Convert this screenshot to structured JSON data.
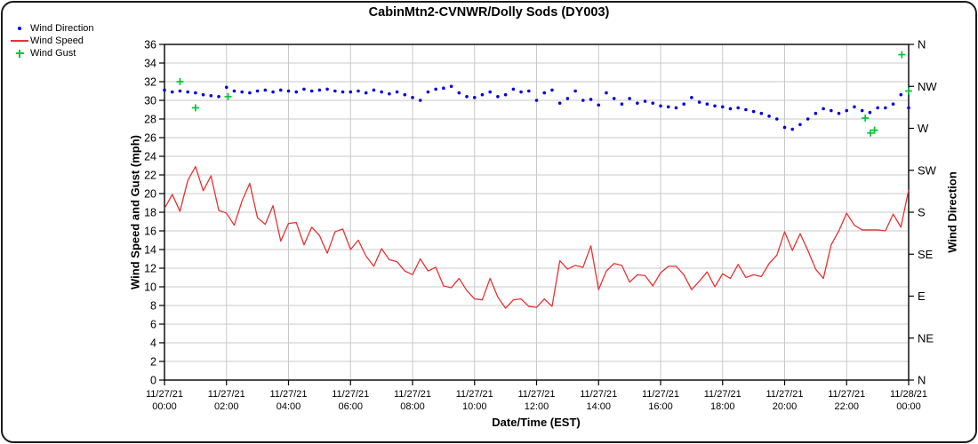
{
  "title": "CabinMtn2-CVNWR/Dolly Sods (DY003)",
  "legend": {
    "items": [
      {
        "label": "Wind Direction",
        "marker": "dot",
        "color": "#0000e0"
      },
      {
        "label": "Wind Speed",
        "marker": "line",
        "color": "#e63232"
      },
      {
        "label": "Wind Gust",
        "marker": "plus",
        "color": "#00c832"
      }
    ]
  },
  "colors": {
    "wind_direction": "#0000e0",
    "wind_speed": "#e63232",
    "wind_gust": "#00c832",
    "grid": "#c9c9c9",
    "axis": "#000000"
  },
  "chart_data": {
    "type": "line",
    "title": "CabinMtn2-CVNWR/Dolly Sods (DY003)",
    "xlabel": "Date/Time (EST)",
    "ylabel_left": "Wind Speed and Gust (mph)",
    "ylabel_right": "Wind Direction",
    "grid": true,
    "legend_position": "top-left",
    "x_unit": "hours since 11/27/21 00:00 EST",
    "xlim": [
      0,
      24
    ],
    "ylim_left": [
      0,
      36
    ],
    "y_tick_step_left": 2,
    "x_tick_step_hours": 2,
    "x_tick_labels": [
      [
        "11/27/21",
        "00:00"
      ],
      [
        "11/27/21",
        "02:00"
      ],
      [
        "11/27/21",
        "04:00"
      ],
      [
        "11/27/21",
        "06:00"
      ],
      [
        "11/27/21",
        "08:00"
      ],
      [
        "11/27/21",
        "10:00"
      ],
      [
        "11/27/21",
        "12:00"
      ],
      [
        "11/27/21",
        "14:00"
      ],
      [
        "11/27/21",
        "16:00"
      ],
      [
        "11/27/21",
        "18:00"
      ],
      [
        "11/27/21",
        "20:00"
      ],
      [
        "11/27/21",
        "22:00"
      ],
      [
        "11/28/21",
        "00:00"
      ]
    ],
    "right_axis_labels": [
      "N",
      "NW",
      "W",
      "SW",
      "S",
      "SE",
      "E",
      "NE",
      "N"
    ],
    "right_axis_values_deg": [
      360,
      315,
      270,
      225,
      180,
      135,
      90,
      45,
      0
    ],
    "right_axis_mapping": "degrees/10 plotted on left 0-36 scale",
    "sample_interval_min": 15,
    "series": [
      {
        "name": "Wind Speed",
        "type": "line",
        "axis": "left",
        "color": "#e63232",
        "x_start": 0,
        "x_step": 0.25,
        "mph": [
          18.4,
          19.9,
          18.1,
          21.4,
          22.9,
          20.3,
          21.9,
          18.2,
          17.9,
          16.6,
          19.2,
          21.1,
          17.4,
          16.7,
          18.7,
          14.9,
          16.8,
          16.9,
          14.5,
          16.4,
          15.5,
          13.6,
          15.9,
          16.2,
          14.0,
          15.0,
          13.3,
          12.2,
          14.1,
          12.9,
          12.7,
          11.7,
          11.3,
          13.0,
          11.7,
          12.1,
          10.1,
          9.9,
          10.9,
          9.6,
          8.7,
          8.6,
          10.9,
          8.9,
          7.7,
          8.6,
          8.7,
          7.9,
          7.8,
          8.7,
          7.9,
          12.8,
          11.9,
          12.3,
          12.1,
          14.4,
          9.7,
          11.7,
          12.5,
          12.3,
          10.5,
          11.3,
          11.2,
          10.1,
          11.5,
          12.2,
          12.2,
          11.3,
          9.7,
          10.6,
          11.6,
          10.0,
          11.4,
          10.9,
          12.4,
          11.0,
          11.3,
          11.1,
          12.5,
          13.4,
          15.9,
          13.9,
          15.7,
          13.9,
          11.9,
          10.9,
          14.5,
          16.0,
          17.9,
          16.6,
          16.1,
          16.1,
          16.1,
          16.0,
          17.8,
          16.4,
          20.4
        ]
      },
      {
        "name": "Wind Direction",
        "type": "scatter",
        "marker": "dot",
        "axis": "right",
        "color": "#0000e0",
        "x_start": 0,
        "x_step": 0.25,
        "deg": [
          311,
          309,
          310,
          309,
          308,
          306,
          305,
          304,
          314,
          310,
          309,
          308,
          310,
          311,
          309,
          311,
          310,
          309,
          312,
          310,
          311,
          312,
          310,
          309,
          309,
          310,
          308,
          311,
          309,
          307,
          309,
          306,
          303,
          300,
          309,
          312,
          313,
          315,
          308,
          304,
          303,
          306,
          309,
          304,
          306,
          312,
          309,
          310,
          300,
          308,
          311,
          297,
          302,
          310,
          300,
          301,
          295,
          308,
          302,
          296,
          302,
          297,
          299,
          297,
          294,
          293,
          292,
          296,
          303,
          298,
          296,
          294,
          293,
          291,
          292,
          290,
          288,
          286,
          283,
          280,
          271,
          269,
          274,
          280,
          286,
          291,
          289,
          286,
          289,
          293,
          289,
          287,
          292,
          292,
          296,
          306,
          292
        ]
      },
      {
        "name": "Wind Gust",
        "type": "scatter",
        "marker": "plus",
        "axis": "left",
        "color": "#00c832",
        "points_mph": [
          [
            0.5,
            32.0
          ],
          [
            1.0,
            29.2
          ],
          [
            2.05,
            30.4
          ],
          [
            22.6,
            28.1
          ],
          [
            22.77,
            26.5
          ],
          [
            22.9,
            26.8
          ],
          [
            23.78,
            34.9
          ],
          [
            24.0,
            31.0
          ]
        ]
      }
    ]
  }
}
